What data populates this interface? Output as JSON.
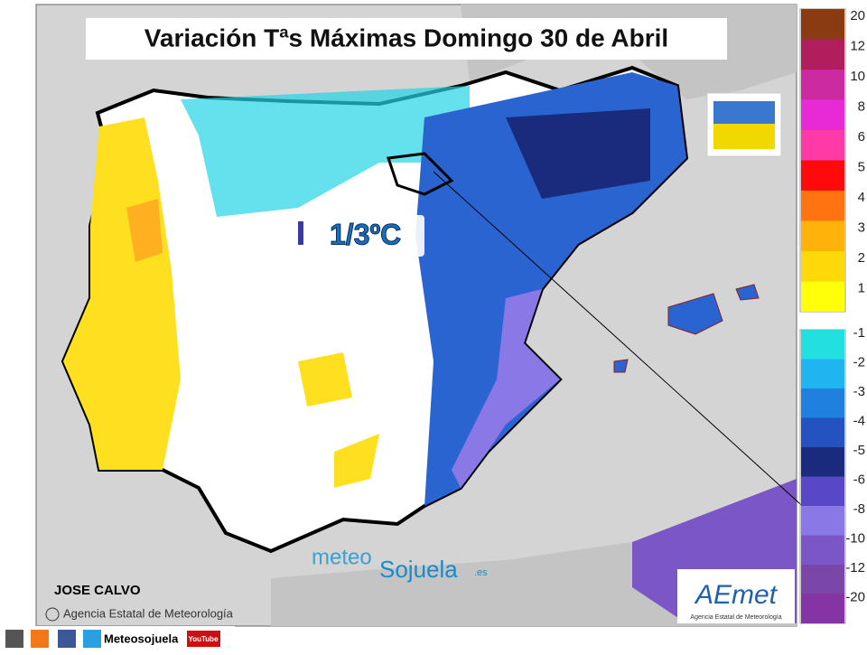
{
  "header": {
    "title": "Variación Tªs Máximas Domingo 30 de Abril"
  },
  "annotation": {
    "label": "1/3ºC"
  },
  "legend": {
    "warm": [
      {
        "label": "20",
        "color": "#8a3b12"
      },
      {
        "label": "12",
        "color": "#b01e5e"
      },
      {
        "label": "10",
        "color": "#cc2aa0"
      },
      {
        "label": "8",
        "color": "#e82ad6"
      },
      {
        "label": "6",
        "color": "#ff3aa6"
      },
      {
        "label": "5",
        "color": "#ff0a0a"
      },
      {
        "label": "4",
        "color": "#ff7410"
      },
      {
        "label": "3",
        "color": "#ffb20a"
      },
      {
        "label": "2",
        "color": "#ffd80a"
      },
      {
        "label": "1",
        "color": "#ffff0a"
      }
    ],
    "cold": [
      {
        "label": "-1",
        "color": "#22e0e0"
      },
      {
        "label": "-2",
        "color": "#20b4f0"
      },
      {
        "label": "-3",
        "color": "#2080e0"
      },
      {
        "label": "-4",
        "color": "#2452c0"
      },
      {
        "label": "-5",
        "color": "#1a2a7c"
      },
      {
        "label": "-6",
        "color": "#5848c8"
      },
      {
        "label": "-8",
        "color": "#8a78e6"
      },
      {
        "label": "-10",
        "color": "#7a56c6"
      },
      {
        "label": "-12",
        "color": "#7a46a8"
      },
      {
        "label": "-20",
        "color": "#8434a4"
      }
    ]
  },
  "credits": {
    "author": "JOSE CALVO",
    "agency": "Agencia Estatal de Meteorología",
    "logo_meteo": "meteo",
    "logo_sojuela": "Sojuela",
    "logo_es": ".es",
    "aemet": "AEmet",
    "aemet_sub": "Agencia Estatal de Meteorología"
  },
  "footer": {
    "site": "Meteosojuela",
    "youtube": "YouTube"
  }
}
